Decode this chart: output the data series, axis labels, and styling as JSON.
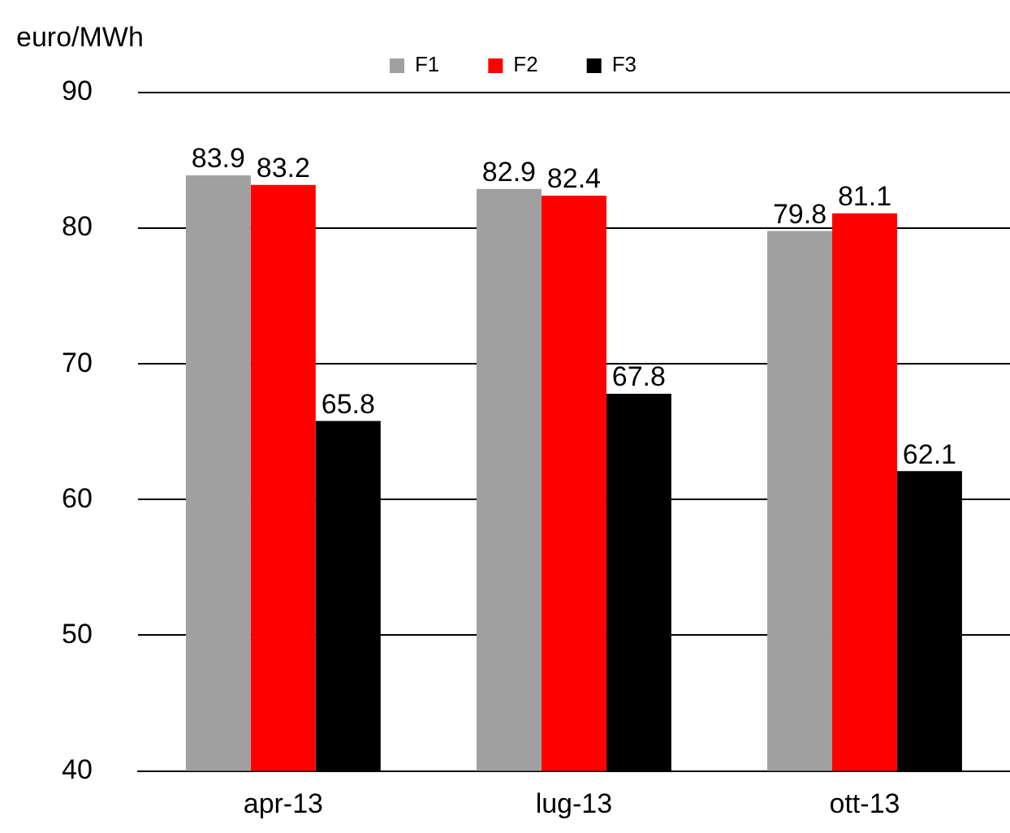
{
  "chart_data": {
    "type": "bar",
    "ylabel": "euro/MWh",
    "categories": [
      "apr-13",
      "lug-13",
      "ott-13"
    ],
    "series": [
      {
        "name": "F1",
        "color": "#a0a0a0",
        "values": [
          83.9,
          82.9,
          79.8
        ]
      },
      {
        "name": "F2",
        "color": "#ff0000",
        "values": [
          83.2,
          82.4,
          81.1
        ]
      },
      {
        "name": "F3",
        "color": "#000000",
        "values": [
          65.8,
          67.8,
          62.1
        ]
      }
    ],
    "ylim": [
      40,
      90
    ],
    "yticks": [
      40,
      50,
      60,
      70,
      80,
      90
    ],
    "grid": "y",
    "legend": "top",
    "data_labels": true
  }
}
